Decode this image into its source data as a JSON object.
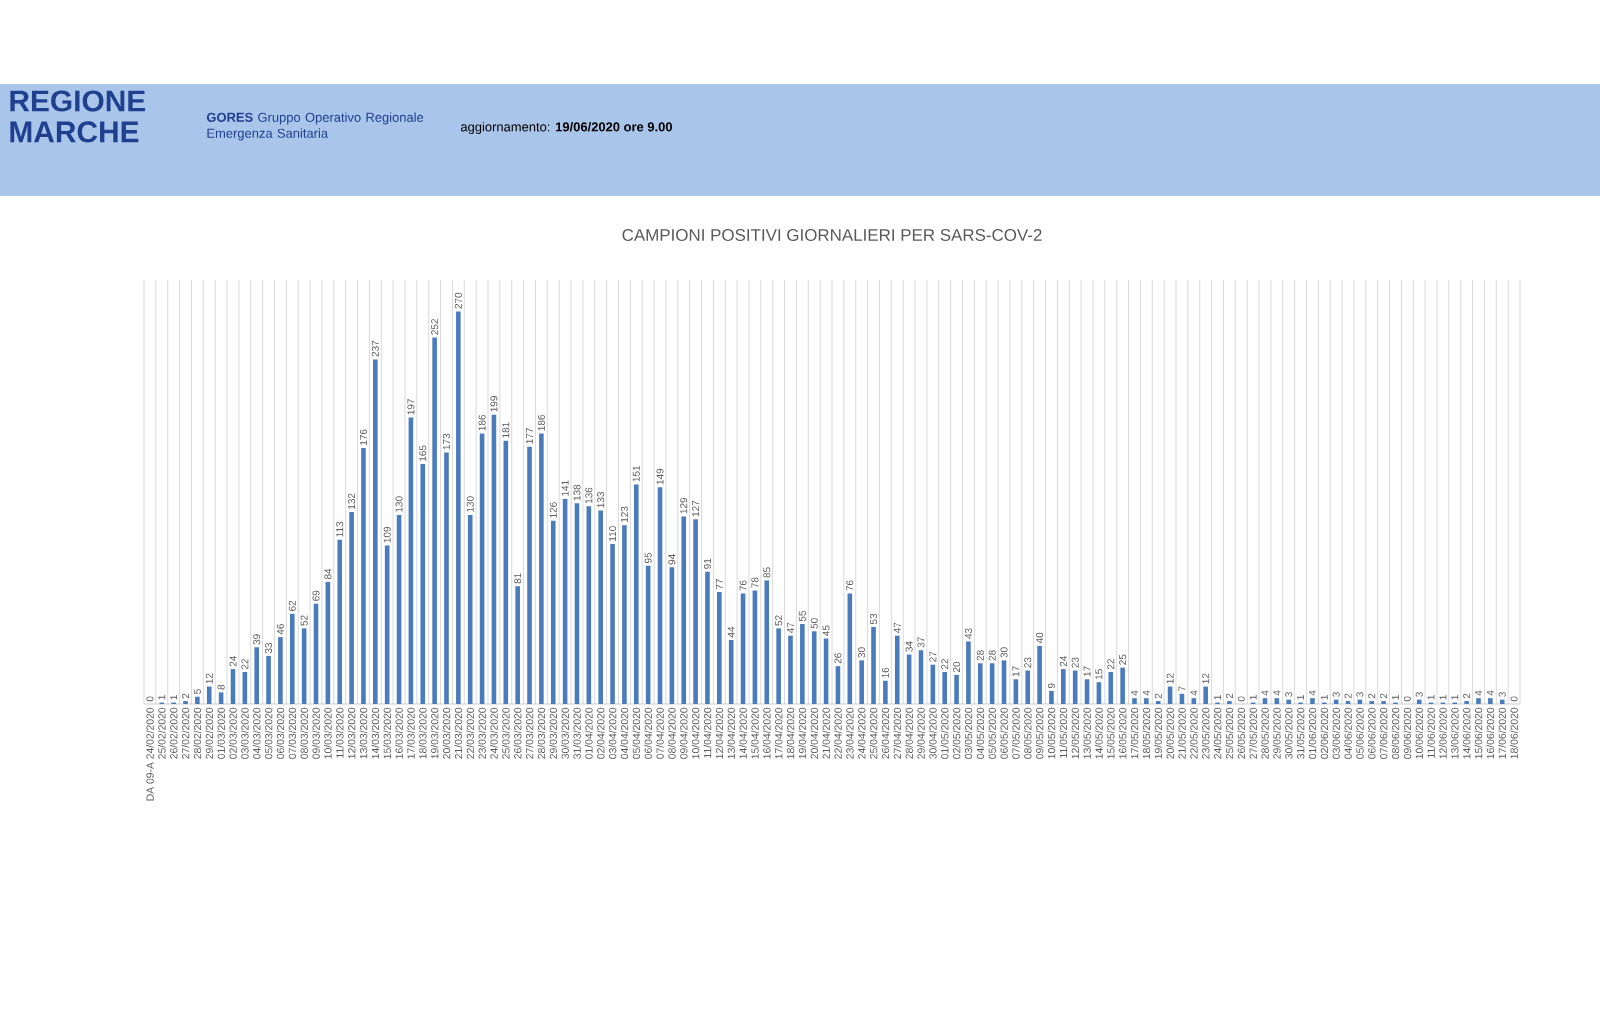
{
  "chart_data": {
    "type": "bar",
    "title": "CAMPIONI POSITIVI GIORNALIERI PER SARS-COV-2",
    "categories": [
      "DA 09-A 24/02/2020",
      "25/02/2020",
      "26/02/2020",
      "27/02/2020",
      "28/02/2020",
      "29/02/2020",
      "01/03/2020",
      "02/03/2020",
      "03/03/2020",
      "04/03/2020",
      "05/03/2020",
      "06/03/2020",
      "07/03/2020",
      "08/03/2020",
      "09/03/2020",
      "10/03/2020",
      "11/03/2020",
      "12/03/2020",
      "13/03/2020",
      "14/03/2020",
      "15/03/2020",
      "16/03/2020",
      "17/03/2020",
      "18/03/2020",
      "19/03/2020",
      "20/03/2020",
      "21/03/2020",
      "22/03/2020",
      "23/03/2020",
      "24/03/2020",
      "25/03/2020",
      "26/03/2020",
      "27/03/2020",
      "28/03/2020",
      "29/03/2020",
      "30/03/2020",
      "31/03/2020",
      "01/04/2020",
      "02/04/2020",
      "03/04/2020",
      "04/04/2020",
      "05/04/2020",
      "06/04/2020",
      "07/04/2020",
      "08/04/2020",
      "09/04/2020",
      "10/04/2020",
      "11/04/2020",
      "12/04/2020",
      "13/04/2020",
      "14/04/2020",
      "15/04/2020",
      "16/04/2020",
      "17/04/2020",
      "18/04/2020",
      "19/04/2020",
      "20/04/2020",
      "21/04/2020",
      "22/04/2020",
      "23/04/2020",
      "24/04/2020",
      "25/04/2020",
      "26/04/2020",
      "27/04/2020",
      "28/04/2020",
      "29/04/2020",
      "30/04/2020",
      "01/05/2020",
      "02/05/2020",
      "03/05/2020",
      "04/05/2020",
      "05/05/2020",
      "06/05/2020",
      "07/05/2020",
      "08/05/2020",
      "09/05/2020",
      "10/05/2020",
      "11/05/2020",
      "12/05/2020",
      "13/05/2020",
      "14/05/2020",
      "15/05/2020",
      "16/05/2020",
      "17/05/2020",
      "18/05/2020",
      "19/05/2020",
      "20/05/2020",
      "21/05/2020",
      "22/05/2020",
      "23/05/2020",
      "24/05/2020",
      "25/05/2020",
      "26/05/2020",
      "27/05/2020",
      "28/05/2020",
      "29/05/2020",
      "30/05/2020",
      "31/05/2020",
      "01/06/2020",
      "02/06/2020",
      "03/06/2020",
      "04/06/2020",
      "05/06/2020",
      "06/06/2020",
      "07/06/2020",
      "08/06/2020",
      "09/06/2020",
      "10/06/2020",
      "11/06/2020",
      "12/06/2020",
      "13/06/2020",
      "14/06/2020",
      "15/06/2020",
      "16/06/2020",
      "17/06/2020",
      "18/06/2020"
    ],
    "values": [
      0,
      1,
      1,
      2,
      5,
      12,
      8,
      24,
      22,
      39,
      33,
      46,
      62,
      52,
      69,
      84,
      113,
      132,
      176,
      237,
      109,
      130,
      197,
      165,
      252,
      173,
      270,
      130,
      186,
      199,
      181,
      81,
      177,
      186,
      126,
      141,
      138,
      136,
      133,
      110,
      123,
      151,
      95,
      149,
      94,
      129,
      127,
      91,
      77,
      44,
      76,
      78,
      85,
      52,
      47,
      55,
      50,
      45,
      26,
      76,
      30,
      53,
      16,
      47,
      34,
      37,
      27,
      22,
      20,
      43,
      28,
      28,
      30,
      17,
      23,
      40,
      9,
      24,
      23,
      17,
      15,
      22,
      25,
      4,
      4,
      2,
      12,
      7,
      4,
      12,
      1,
      2,
      0,
      1,
      4,
      4,
      3,
      1,
      4,
      1,
      3,
      2,
      3,
      2,
      2,
      1,
      0,
      3,
      1,
      1,
      1,
      2,
      4,
      4,
      3,
      0
    ],
    "color": "#4a7bbd",
    "data_labels": true,
    "grid": "x",
    "annotations": [
      "REGIONE MARCHE",
      "**GORES** Gruppo Operativo Regionale Emergenza Sanitaria",
      "aggiornamento: **19/06/2020 ore 9.00**"
    ]
  }
}
